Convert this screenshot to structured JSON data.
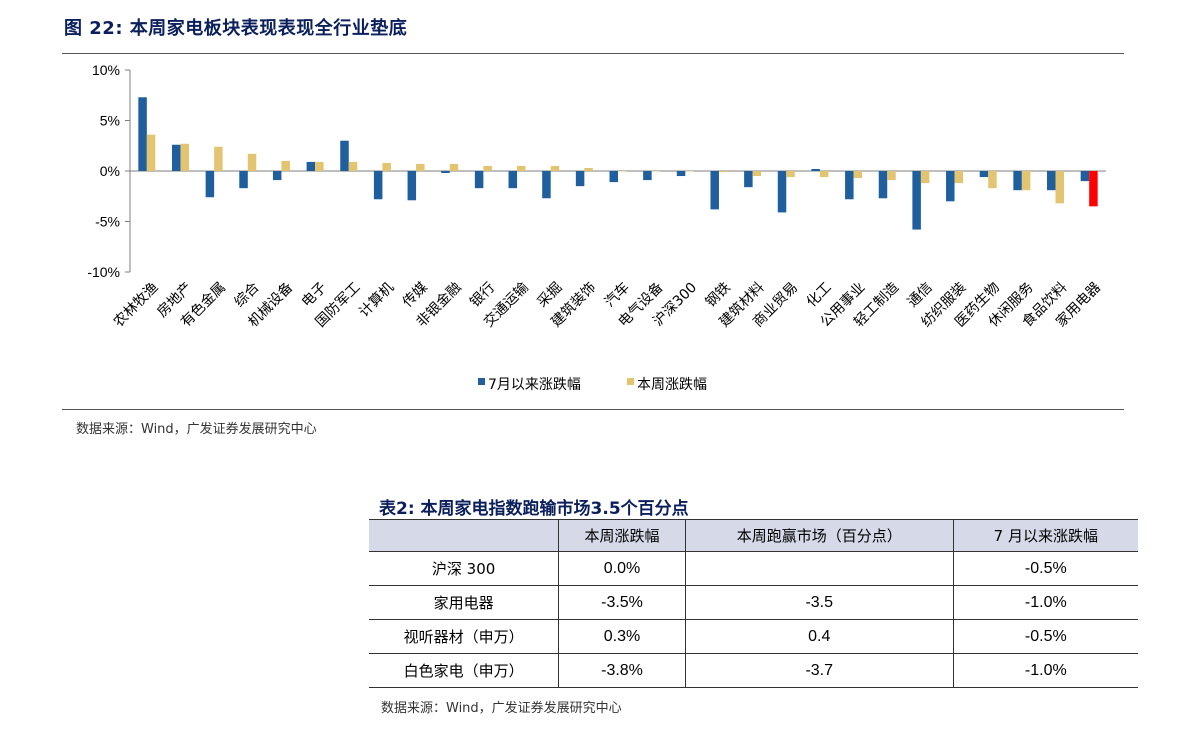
{
  "figure_title": "图 22:  本周家电板块表现表现全行业垫底",
  "chart_data": {
    "type": "bar",
    "categories": [
      "农林牧渔",
      "房地产",
      "有色金属",
      "综合",
      "机械设备",
      "电子",
      "国防军工",
      "计算机",
      "传媒",
      "非银金融",
      "银行",
      "交通运输",
      "采掘",
      "建筑装饰",
      "汽车",
      "电气设备",
      "沪深300",
      "钢铁",
      "建筑材料",
      "商业贸易",
      "化工",
      "公用事业",
      "轻工制造",
      "通信",
      "纺织服装",
      "医药生物",
      "休闲服务",
      "食品饮料",
      "家用电器"
    ],
    "series": [
      {
        "name": "7月以来涨跌幅",
        "color": "#1f5f9e",
        "values": [
          7.3,
          2.6,
          -2.6,
          -1.7,
          -0.9,
          0.9,
          3.0,
          -2.8,
          -2.9,
          -0.2,
          -1.7,
          -1.7,
          -2.7,
          -1.5,
          -1.1,
          -0.9,
          -0.5,
          -3.8,
          -1.6,
          -4.1,
          0.2,
          -2.8,
          -2.7,
          -5.8,
          -3.0,
          -0.6,
          -1.9,
          -1.9,
          -1.0
        ]
      },
      {
        "name": "本周涨跌幅",
        "color": "#e3c470",
        "values": [
          3.6,
          2.7,
          2.4,
          1.7,
          1.0,
          0.9,
          0.9,
          0.8,
          0.7,
          0.7,
          0.5,
          0.5,
          0.5,
          0.3,
          0.0,
          0.0,
          0.0,
          -0.1,
          -0.5,
          -0.6,
          -0.6,
          -0.7,
          -0.9,
          -1.2,
          -1.2,
          -1.7,
          -1.9,
          -3.2,
          -3.5
        ]
      }
    ],
    "highlight": {
      "category": "家用电器",
      "series": "本周涨跌幅",
      "color": "#ff0000"
    },
    "ylim": [
      -10,
      10
    ],
    "yticks": [
      "10%",
      "5%",
      "0%",
      "-5%",
      "-10%"
    ],
    "legend_position": "bottom-center",
    "grid": false
  },
  "source_note_1": "数据来源：Wind，广发证券发展研究中心",
  "table": {
    "title": "表2:  本周家电指数跑输市场3.5个百分点",
    "headers": [
      "",
      "本周涨跌幅",
      "本周跑赢市场（百分点）",
      "7 月以来涨跌幅"
    ],
    "rows": [
      [
        "沪深 300",
        "0.0%",
        "",
        "-0.5%"
      ],
      [
        "家用电器",
        "-3.5%",
        "-3.5",
        "-1.0%"
      ],
      [
        "视听器材（申万）",
        "0.3%",
        "0.4",
        "-0.5%"
      ],
      [
        "白色家电（申万）",
        "-3.8%",
        "-3.7",
        "-1.0%"
      ]
    ]
  },
  "source_note_2": "数据来源：Wind，广发证券发展研究中心"
}
